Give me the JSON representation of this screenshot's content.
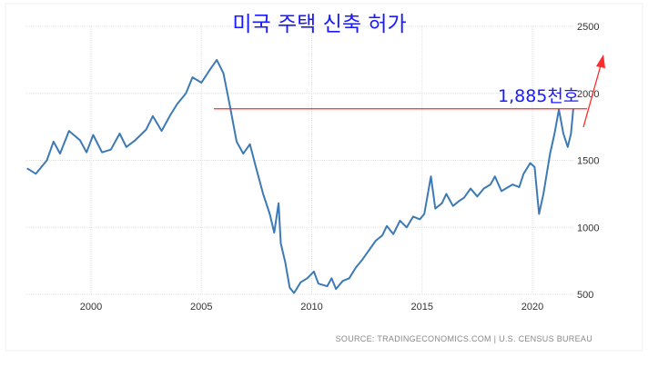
{
  "chart_data": {
    "type": "line",
    "title": "미국 주택 신축 허가",
    "source": "SOURCE: TRADINGECONOMICS.COM | U.S. CENSUS BUREAU",
    "xlabel": "",
    "ylabel": "",
    "xlim": [
      1997.1,
      2021.85
    ],
    "ylim": [
      500,
      2500
    ],
    "x_ticks": [
      "2000",
      "2005",
      "2010",
      "2015",
      "2020"
    ],
    "y_ticks": [
      "2500",
      "2000",
      "1500",
      "1000",
      "500"
    ],
    "y_axis_position": "right",
    "grid": true,
    "line_color": "#3d7ab5",
    "series": [
      {
        "x": [
          1997.1,
          1997.5,
          1998.0,
          1998.3,
          1998.6,
          1999.0,
          1999.5,
          1999.8,
          2000.1,
          2000.5,
          2000.9,
          2001.3,
          2001.6,
          2002.0,
          2002.5,
          2002.8,
          2003.2,
          2003.6,
          2003.9,
          2004.3,
          2004.6,
          2005.0,
          2005.4,
          2005.7,
          2006.0,
          2006.3,
          2006.6,
          2006.9,
          2007.2,
          2007.5,
          2007.8,
          2008.1,
          2008.3,
          2008.5,
          2008.6,
          2008.8,
          2009.0,
          2009.2,
          2009.5,
          2009.8,
          2010.1,
          2010.3,
          2010.7,
          2010.9,
          2011.1,
          2011.4,
          2011.7,
          2012.0,
          2012.3,
          2012.6,
          2012.9,
          2013.2,
          2013.4,
          2013.7,
          2014.0,
          2014.3,
          2014.6,
          2014.9,
          2015.1,
          2015.4,
          2015.6,
          2015.9,
          2016.1,
          2016.4,
          2016.7,
          2016.9,
          2017.2,
          2017.5,
          2017.8,
          2018.1,
          2018.3,
          2018.6,
          2018.9,
          2019.1,
          2019.4,
          2019.6,
          2019.9,
          2020.1,
          2020.3,
          2020.5,
          2020.8,
          2021.0,
          2021.2,
          2021.4,
          2021.6,
          2021.75,
          2021.85
        ],
        "values": [
          1440,
          1400,
          1500,
          1640,
          1550,
          1720,
          1650,
          1560,
          1690,
          1560,
          1580,
          1700,
          1600,
          1650,
          1730,
          1830,
          1720,
          1840,
          1920,
          2000,
          2120,
          2080,
          2180,
          2250,
          2150,
          1900,
          1640,
          1550,
          1620,
          1430,
          1250,
          1100,
          960,
          1180,
          880,
          740,
          550,
          510,
          590,
          620,
          670,
          580,
          560,
          620,
          540,
          600,
          620,
          700,
          760,
          830,
          900,
          940,
          1010,
          950,
          1050,
          1000,
          1080,
          1060,
          1100,
          1380,
          1140,
          1180,
          1250,
          1160,
          1200,
          1220,
          1290,
          1230,
          1290,
          1320,
          1380,
          1270,
          1300,
          1320,
          1300,
          1400,
          1480,
          1450,
          1100,
          1250,
          1550,
          1700,
          1880,
          1700,
          1600,
          1700,
          1885
        ]
      }
    ],
    "annotations": {
      "reference_value": 1885,
      "reference_label": "1,885천호",
      "reference_line_color": "#ff2a2a",
      "arrow_color": "#ff2a2a"
    }
  }
}
